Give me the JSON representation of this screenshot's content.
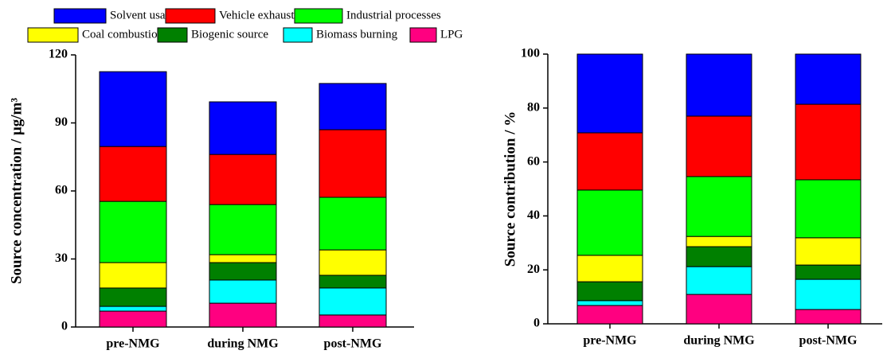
{
  "chart_data": [
    {
      "type": "stacked-bar",
      "ylabel": "Source concentration / μg/m³",
      "categories": [
        "pre-NMG",
        "during NMG",
        "post-NMG"
      ],
      "ylim": [
        0,
        120
      ],
      "yticks": [
        0,
        30,
        60,
        90,
        120
      ],
      "series": [
        {
          "name": "Solvent usage",
          "color": "#0000ff",
          "values": [
            33.0,
            23.2,
            20.4
          ]
        },
        {
          "name": "Vehicle exhausts",
          "color": "#ff0000",
          "values": [
            24.2,
            22.1,
            29.8
          ]
        },
        {
          "name": "Industrial processes",
          "color": "#00ff00",
          "values": [
            27.0,
            22.1,
            23.2
          ]
        },
        {
          "name": "Coal combustion",
          "color": "#ffff00",
          "values": [
            11.2,
            3.5,
            11.2
          ]
        },
        {
          "name": "Biogenic source",
          "color": "#008000",
          "values": [
            8.1,
            7.7,
            5.6
          ]
        },
        {
          "name": "Biomass burning",
          "color": "#00ffff",
          "values": [
            2.1,
            10.2,
            11.9
          ]
        },
        {
          "name": "LPG",
          "color": "#ff0080",
          "values": [
            7.0,
            10.5,
            5.3
          ]
        }
      ]
    },
    {
      "type": "stacked-bar",
      "ylabel": "Source contribution / %",
      "categories": [
        "pre-NMG",
        "during NMG",
        "post-NMG"
      ],
      "ylim": [
        0,
        100
      ],
      "yticks": [
        0,
        20,
        40,
        60,
        80,
        100
      ],
      "series": [
        {
          "color": "#0000ff",
          "values": [
            29.2,
            23.0,
            18.6
          ]
        },
        {
          "color": "#ff0000",
          "values": [
            21.2,
            22.4,
            28.0
          ]
        },
        {
          "color": "#00ff00",
          "values": [
            24.2,
            22.2,
            21.5
          ]
        },
        {
          "color": "#ffff00",
          "values": [
            9.8,
            3.8,
            10.1
          ]
        },
        {
          "color": "#008000",
          "values": [
            7.0,
            7.4,
            5.3
          ]
        },
        {
          "color": "#00ffff",
          "values": [
            1.8,
            10.3,
            11.2
          ]
        },
        {
          "color": "#ff0080",
          "values": [
            6.8,
            10.9,
            5.3
          ]
        }
      ]
    }
  ]
}
